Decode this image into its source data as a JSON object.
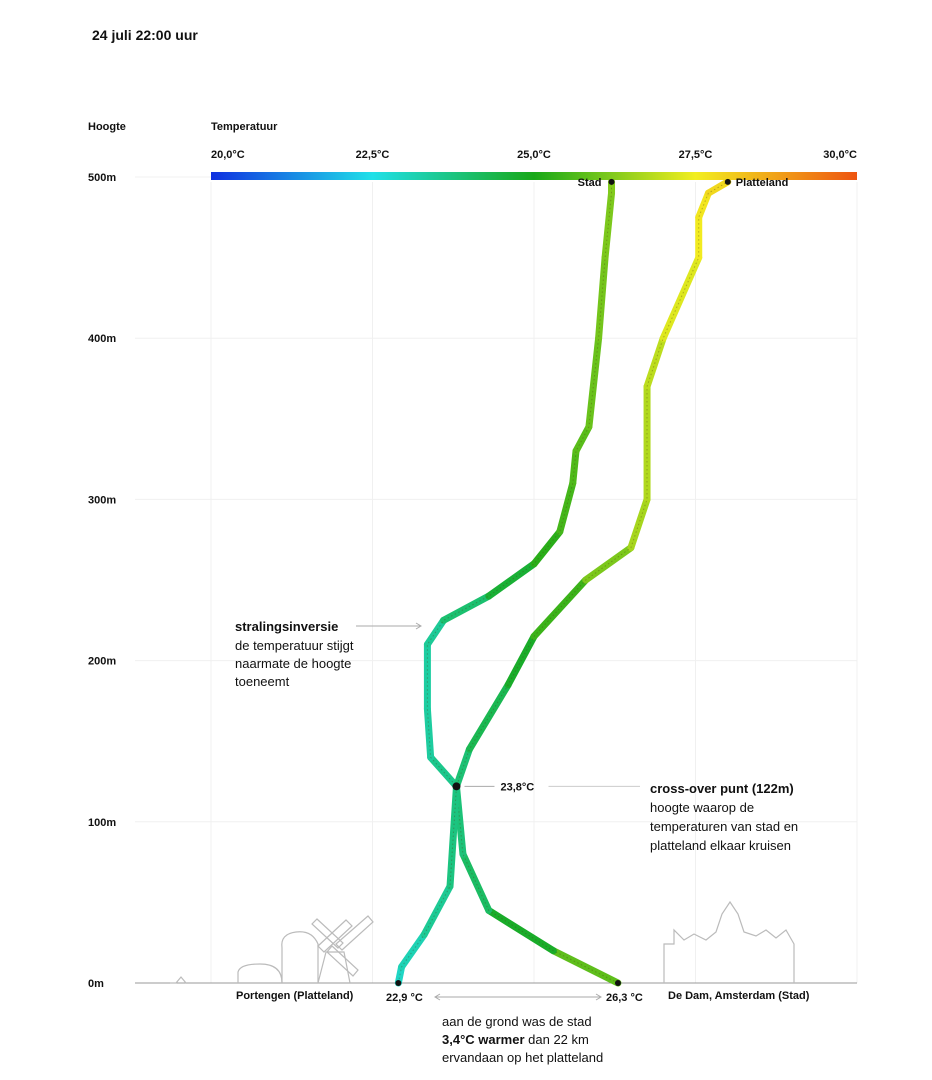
{
  "title": "24 juli 22:00 uur",
  "chart_data": {
    "type": "line",
    "ylabel": "Hoogte",
    "xlabel": "Temperatuur",
    "x_ticks": [
      "20,0°C",
      "22,5°C",
      "25,0°C",
      "27,5°C",
      "30,0°C"
    ],
    "y_ticks": [
      "0m",
      "100m",
      "200m",
      "300m",
      "400m",
      "500m"
    ],
    "xlim": [
      20,
      30
    ],
    "ylim": [
      0,
      500
    ],
    "colorbar": [
      "#1030e0",
      "#20e0e8",
      "#18a818",
      "#f2ee20",
      "#ee5410"
    ],
    "series": [
      {
        "name": "Stad",
        "end_label": "Stad",
        "color_by_temperature": true,
        "points": [
          [
            26.3,
            0
          ],
          [
            25.3,
            20
          ],
          [
            24.3,
            45
          ],
          [
            23.9,
            80
          ],
          [
            23.8,
            122
          ],
          [
            23.4,
            140
          ],
          [
            23.35,
            170
          ],
          [
            23.35,
            210
          ],
          [
            23.6,
            225
          ],
          [
            24.3,
            240
          ],
          [
            25.0,
            260
          ],
          [
            25.4,
            280
          ],
          [
            25.6,
            310
          ],
          [
            25.65,
            330
          ],
          [
            25.85,
            345
          ],
          [
            26.0,
            400
          ],
          [
            26.1,
            450
          ],
          [
            26.2,
            490
          ],
          [
            26.2,
            497
          ]
        ]
      },
      {
        "name": "Platteland",
        "end_label": "Platteland",
        "color_by_temperature": true,
        "points": [
          [
            22.9,
            0
          ],
          [
            22.95,
            10
          ],
          [
            23.3,
            30
          ],
          [
            23.7,
            60
          ],
          [
            23.8,
            122
          ],
          [
            24.0,
            145
          ],
          [
            24.6,
            185
          ],
          [
            25.0,
            215
          ],
          [
            25.8,
            250
          ],
          [
            26.5,
            270
          ],
          [
            26.75,
            300
          ],
          [
            26.75,
            370
          ],
          [
            27.0,
            400
          ],
          [
            27.55,
            450
          ],
          [
            27.55,
            475
          ],
          [
            27.7,
            490
          ],
          [
            28.0,
            497
          ]
        ]
      }
    ],
    "crossover": {
      "x": 23.8,
      "y": 122,
      "label": "23,8°C"
    },
    "ground_labels": {
      "left_place": "Portengen (Platteland)",
      "left_temp": "22,9 °C",
      "right_temp": "26,3 °C",
      "right_place": "De Dam, Amsterdam (Stad)"
    },
    "annotations": {
      "inversion_title": "stralingsinversie",
      "inversion_text": [
        "de temperatuur stijgt",
        "naarmate de hoogte",
        "toeneemt"
      ],
      "crossover_title": "cross-over punt (122m)",
      "crossover_text": [
        "hoogte waarop de",
        "temperaturen van stad en",
        "platteland elkaar kruisen"
      ],
      "ground_text_1": "aan de grond was de stad",
      "ground_bold": "3,4°C warmer",
      "ground_text_2": " dan 22 km",
      "ground_text_3": "ervandaan op het platteland"
    }
  }
}
